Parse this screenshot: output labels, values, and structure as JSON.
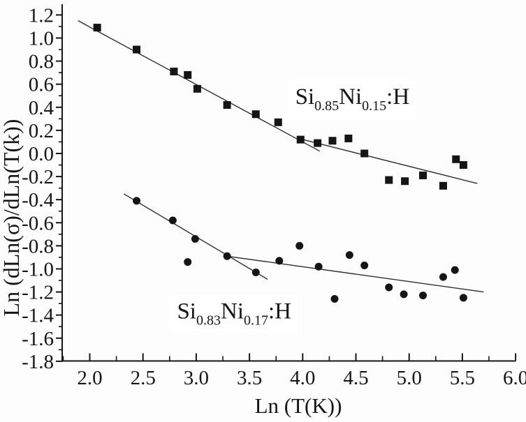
{
  "figure": {
    "background_color": "#fdfdfd",
    "ink_color": "#151515",
    "fit_line_color": "#2e2e2e",
    "label_box_color": "#ffffff"
  },
  "chart_data": {
    "type": "scatter",
    "title": "",
    "xlabel": "Ln (T(K))",
    "ylabel": "Ln (dLn(σ)/dLn(T(k))",
    "xlim": [
      1.74,
      6.0
    ],
    "ylim": [
      -1.8,
      1.28
    ],
    "grid": false,
    "legend_position": "inline-annotations",
    "x_ticks": [
      {
        "v": 2.0,
        "label": "2.0"
      },
      {
        "v": 2.5,
        "label": "2.5"
      },
      {
        "v": 3.0,
        "label": "3.0"
      },
      {
        "v": 3.5,
        "label": "3.5"
      },
      {
        "v": 4.0,
        "label": "4.0"
      },
      {
        "v": 4.5,
        "label": "4.5"
      },
      {
        "v": 5.0,
        "label": "5.0"
      },
      {
        "v": 5.5,
        "label": "5.5"
      },
      {
        "v": 6.0,
        "label": "6.0"
      }
    ],
    "x_minor_ticks": [
      1.75,
      2.25,
      2.75,
      3.25,
      3.75,
      4.25,
      4.75,
      5.25,
      5.75
    ],
    "y_ticks": [
      {
        "v": 1.2,
        "label": "1.2"
      },
      {
        "v": 1.0,
        "label": "1.0"
      },
      {
        "v": 0.8,
        "label": "0.8"
      },
      {
        "v": 0.6,
        "label": "0.6"
      },
      {
        "v": 0.4,
        "label": "0.4"
      },
      {
        "v": 0.2,
        "label": "0.2"
      },
      {
        "v": 0.0,
        "label": "0.0"
      },
      {
        "v": -0.2,
        "label": "-0.2"
      },
      {
        "v": -0.4,
        "label": "-0.4"
      },
      {
        "v": -0.6,
        "label": "-0.6"
      },
      {
        "v": -0.8,
        "label": "-0.8"
      },
      {
        "v": -1.0,
        "label": "-1.0"
      },
      {
        "v": -1.2,
        "label": "-1.2"
      },
      {
        "v": -1.4,
        "label": "-1.4"
      },
      {
        "v": -1.6,
        "label": "-1.6"
      },
      {
        "v": -1.8,
        "label": "-1.8"
      }
    ],
    "y_minor_ticks": [
      1.1,
      0.9,
      0.7,
      0.5,
      0.3,
      0.1,
      -0.1,
      -0.3,
      -0.5,
      -0.7,
      -0.9,
      -1.1,
      -1.3,
      -1.5,
      -1.7
    ],
    "series": [
      {
        "name": "Si0.85Ni0.15:H",
        "marker": "square",
        "label_parts": [
          {
            "t": "Si",
            "sub": false
          },
          {
            "t": "0.85",
            "sub": true
          },
          {
            "t": "Ni",
            "sub": false
          },
          {
            "t": "0.15",
            "sub": true
          },
          {
            "t": ":H",
            "sub": false
          }
        ],
        "label_anchor": [
          3.93,
          0.43
        ],
        "points": [
          [
            2.07,
            1.09
          ],
          [
            2.44,
            0.9
          ],
          [
            2.79,
            0.71
          ],
          [
            2.92,
            0.68
          ],
          [
            3.01,
            0.56
          ],
          [
            3.29,
            0.42
          ],
          [
            3.56,
            0.34
          ],
          [
            3.77,
            0.27
          ],
          [
            3.98,
            0.12
          ],
          [
            4.14,
            0.09
          ],
          [
            4.28,
            0.11
          ],
          [
            4.43,
            0.13
          ],
          [
            4.58,
            0.0
          ],
          [
            4.81,
            -0.23
          ],
          [
            4.96,
            -0.24
          ],
          [
            5.13,
            -0.19
          ],
          [
            5.32,
            -0.28
          ],
          [
            5.44,
            -0.05
          ],
          [
            5.51,
            -0.1
          ]
        ],
        "fit_lines": [
          [
            [
              1.89,
              1.15
            ],
            [
              4.16,
              0.02
            ]
          ],
          [
            [
              3.96,
              0.13
            ],
            [
              5.64,
              -0.26
            ]
          ]
        ]
      },
      {
        "name": "Si0.83Ni0.17:H",
        "marker": "circle",
        "label_parts": [
          {
            "t": "Si",
            "sub": false
          },
          {
            "t": "0.83",
            "sub": true
          },
          {
            "t": "Ni",
            "sub": false
          },
          {
            "t": "0.17",
            "sub": true
          },
          {
            "t": ":H",
            "sub": false
          }
        ],
        "label_anchor": [
          2.82,
          -1.43
        ],
        "points": [
          [
            2.44,
            -0.41
          ],
          [
            2.78,
            -0.58
          ],
          [
            2.92,
            -0.94
          ],
          [
            2.99,
            -0.74
          ],
          [
            3.29,
            -0.89
          ],
          [
            3.56,
            -1.03
          ],
          [
            3.78,
            -0.93
          ],
          [
            3.97,
            -0.8
          ],
          [
            4.15,
            -0.98
          ],
          [
            4.3,
            -1.26
          ],
          [
            4.44,
            -0.88
          ],
          [
            4.58,
            -0.97
          ],
          [
            4.81,
            -1.16
          ],
          [
            4.95,
            -1.22
          ],
          [
            5.13,
            -1.23
          ],
          [
            5.32,
            -1.07
          ],
          [
            5.43,
            -1.01
          ],
          [
            5.51,
            -1.25
          ]
        ],
        "fit_lines": [
          [
            [
              2.32,
              -0.35
            ],
            [
              3.67,
              -1.09
            ]
          ],
          [
            [
              3.29,
              -0.89
            ],
            [
              5.7,
              -1.2
            ]
          ]
        ]
      }
    ]
  }
}
